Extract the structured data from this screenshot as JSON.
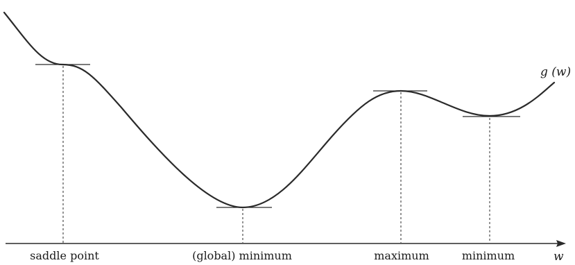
{
  "diagram": {
    "curve_label": "g (w)",
    "axis_label": "w",
    "points": [
      {
        "id": "saddle",
        "label": "saddle point"
      },
      {
        "id": "global-min",
        "label": "(global) minimum"
      },
      {
        "id": "maximum",
        "label": "maximum"
      },
      {
        "id": "local-min",
        "label": "minimum"
      }
    ]
  }
}
